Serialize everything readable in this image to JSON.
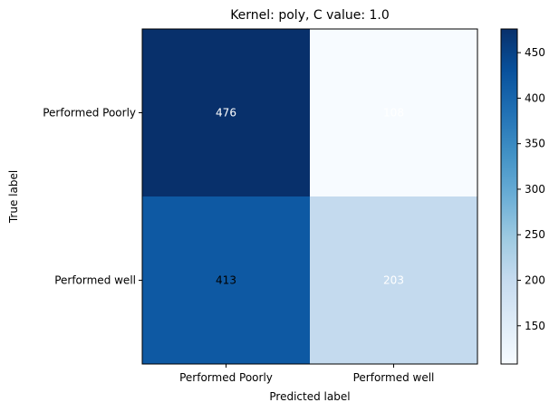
{
  "chart_data": {
    "type": "heatmap",
    "title": "Kernel: poly, C value: 1.0",
    "xlabel": "Predicted label",
    "ylabel": "True label",
    "x_categories": [
      "Performed Poorly",
      "Performed well"
    ],
    "y_categories": [
      "Performed Poorly",
      "Performed well"
    ],
    "values": [
      [
        476,
        108
      ],
      [
        413,
        203
      ]
    ],
    "colormap": "Blues",
    "colorbar": {
      "range": [
        108,
        476
      ],
      "ticks": [
        150,
        200,
        250,
        300,
        350,
        400,
        450
      ]
    },
    "cell_colors": [
      [
        "#08306b",
        "#f7fbff"
      ],
      [
        "#0e59a3",
        "#c4daee"
      ]
    ],
    "text_colors": [
      [
        "#ffffff",
        "#ffffff"
      ],
      [
        "#000000",
        "#ffffff"
      ]
    ],
    "grid": false
  }
}
